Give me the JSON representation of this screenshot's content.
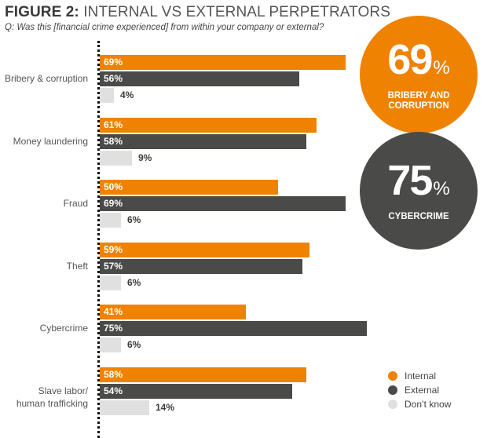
{
  "header": {
    "title_bold": "FIGURE 2:",
    "title_rest": " INTERNAL VS EXTERNAL PERPETRATORS",
    "subtitle": "Q: Was this [financial crime experienced] from within your company or external?"
  },
  "colors": {
    "internal": "#ef8200",
    "external": "#4a4a48",
    "dont_know": "#e0e0e0"
  },
  "callouts": [
    {
      "value": "69",
      "unit": "%",
      "caption_line1": "BRIBERY AND",
      "caption_line2": "CORRUPTION",
      "color": "#ef8200"
    },
    {
      "value": "75",
      "unit": "%",
      "caption_line1": "CYBERCRIME",
      "caption_line2": "",
      "color": "#4a4a48"
    }
  ],
  "legend": [
    {
      "label": "Internal",
      "color": "#ef8200"
    },
    {
      "label": "External",
      "color": "#4a4a48"
    },
    {
      "label": "Don’t know",
      "color": "#e0e0e0"
    }
  ],
  "groups": [
    {
      "label_line1": "Bribery & corruption",
      "label_line2": "",
      "internal": "69%",
      "external": "56%",
      "dont_know": "4%"
    },
    {
      "label_line1": "Money laundering",
      "label_line2": "",
      "internal": "61%",
      "external": "58%",
      "dont_know": "9%"
    },
    {
      "label_line1": "Fraud",
      "label_line2": "",
      "internal": "50%",
      "external": "69%",
      "dont_know": "6%"
    },
    {
      "label_line1": "Theft",
      "label_line2": "",
      "internal": "59%",
      "external": "57%",
      "dont_know": "6%"
    },
    {
      "label_line1": "Cybercrime",
      "label_line2": "",
      "internal": "41%",
      "external": "75%",
      "dont_know": "6%"
    },
    {
      "label_line1": "Slave labor/",
      "label_line2": "human trafficking",
      "internal": "58%",
      "external": "54%",
      "dont_know": "14%"
    }
  ],
  "chart_data": {
    "type": "bar",
    "orientation": "horizontal",
    "title": "FIGURE 2: INTERNAL VS EXTERNAL PERPETRATORS",
    "subtitle": "Q: Was this [financial crime experienced] from within your company or external?",
    "categories": [
      "Bribery & corruption",
      "Money laundering",
      "Fraud",
      "Theft",
      "Cybercrime",
      "Slave labor/human trafficking"
    ],
    "series": [
      {
        "name": "Internal",
        "color": "#ef8200",
        "values": [
          69,
          61,
          50,
          59,
          41,
          58
        ]
      },
      {
        "name": "External",
        "color": "#4a4a48",
        "values": [
          56,
          58,
          69,
          57,
          75,
          54
        ]
      },
      {
        "name": "Don't know",
        "color": "#e0e0e0",
        "values": [
          4,
          9,
          6,
          6,
          6,
          14
        ]
      }
    ],
    "xlabel": "",
    "ylabel": "",
    "unit": "%",
    "xlim": [
      0,
      80
    ],
    "grid": false,
    "legend_position": "bottom-right",
    "annotations": [
      "69% BRIBERY AND CORRUPTION",
      "75% CYBERCRIME"
    ]
  }
}
